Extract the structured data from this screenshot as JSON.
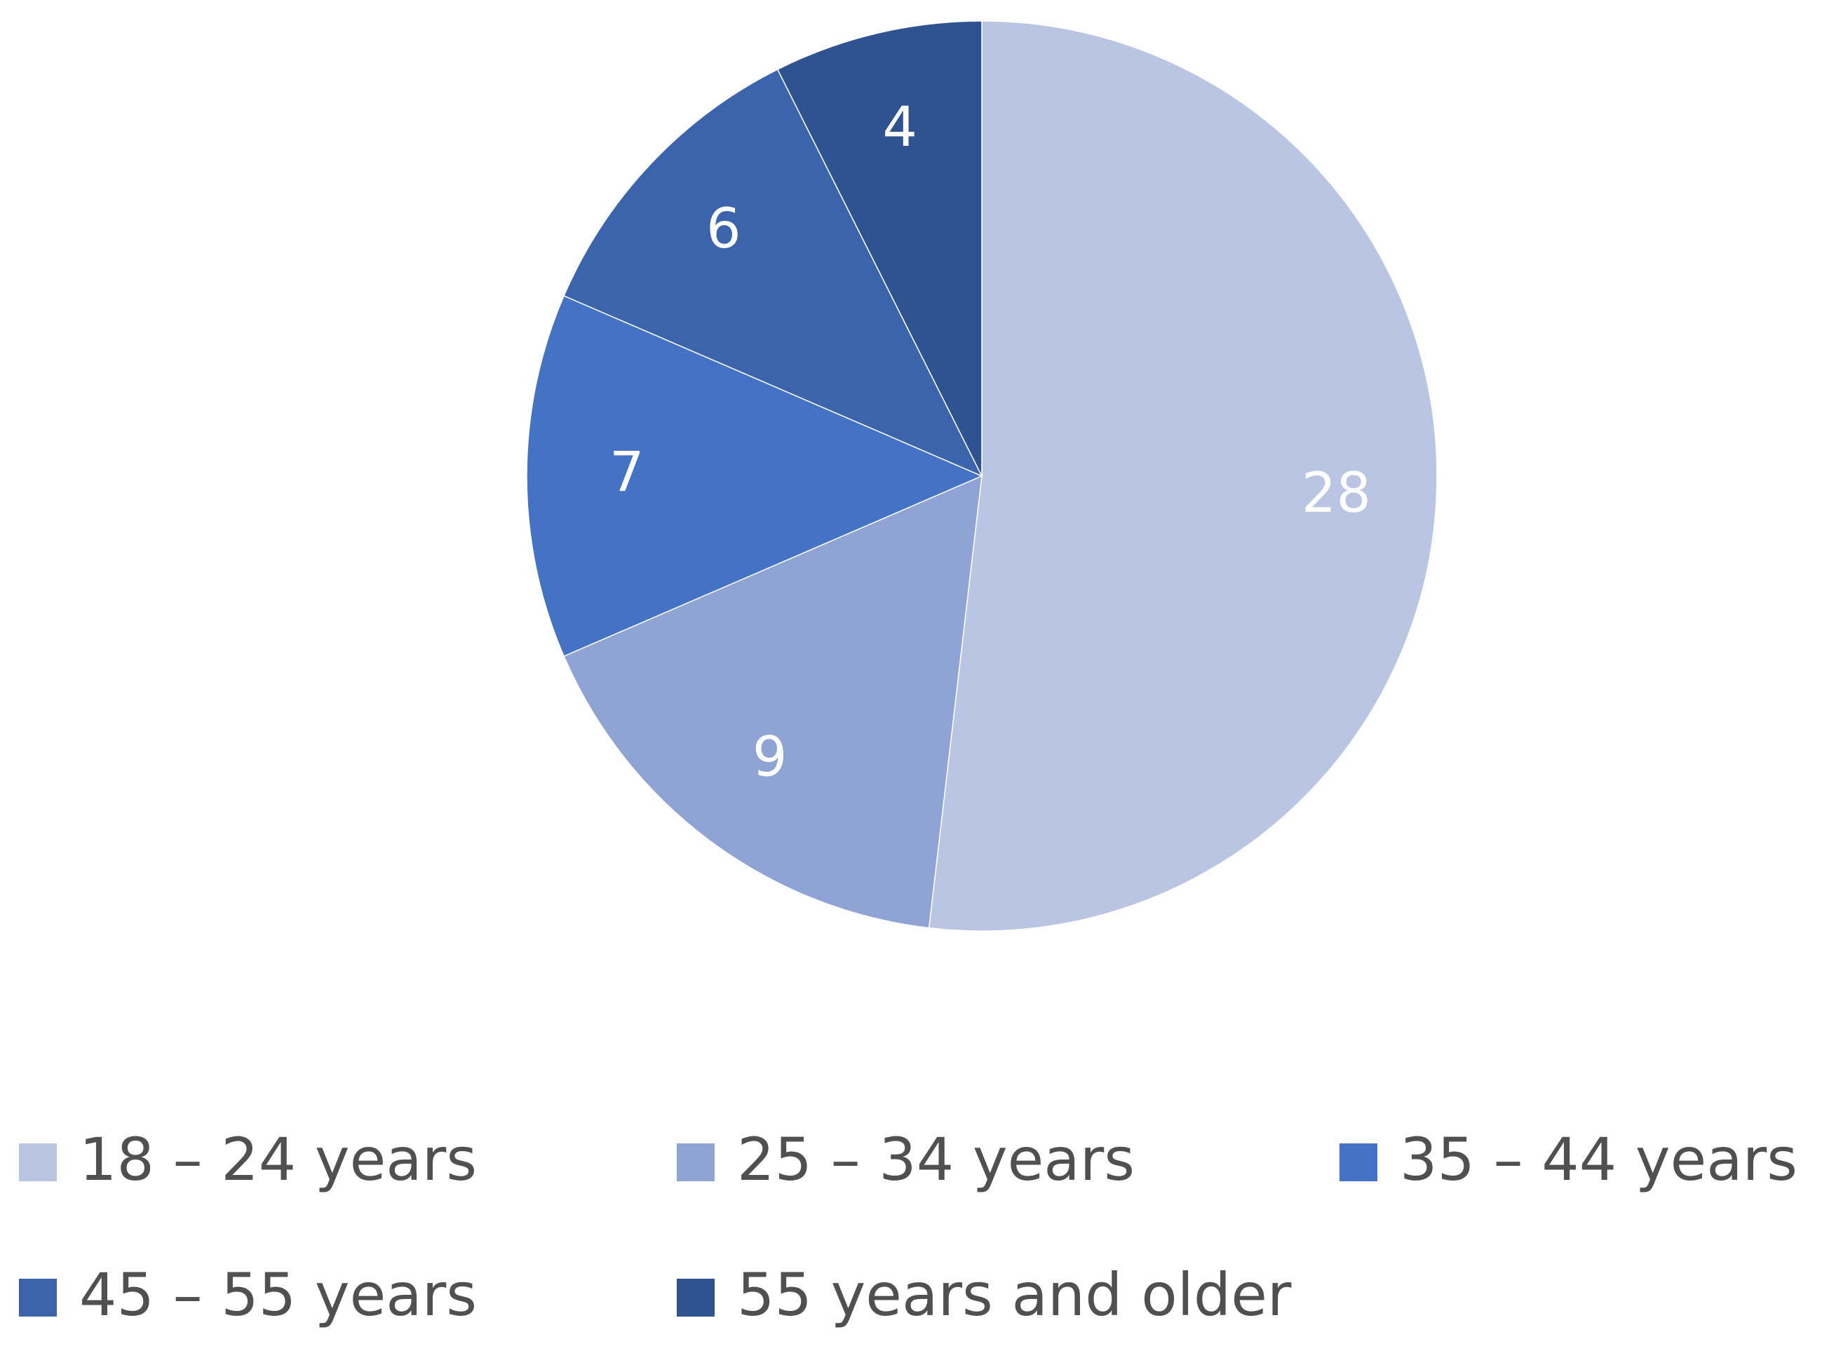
{
  "chart_data": {
    "type": "pie",
    "categories": [
      "18 – 24 years",
      "25 – 34 years",
      "35 – 44 years",
      "45 – 55 years",
      "55 years and older"
    ],
    "values": [
      28,
      9,
      7,
      6,
      4
    ],
    "colors": [
      "#bac4e3",
      "#8fa4d4",
      "#4472c4",
      "#3c64ad",
      "#2f5290"
    ],
    "legend": "bottom"
  }
}
